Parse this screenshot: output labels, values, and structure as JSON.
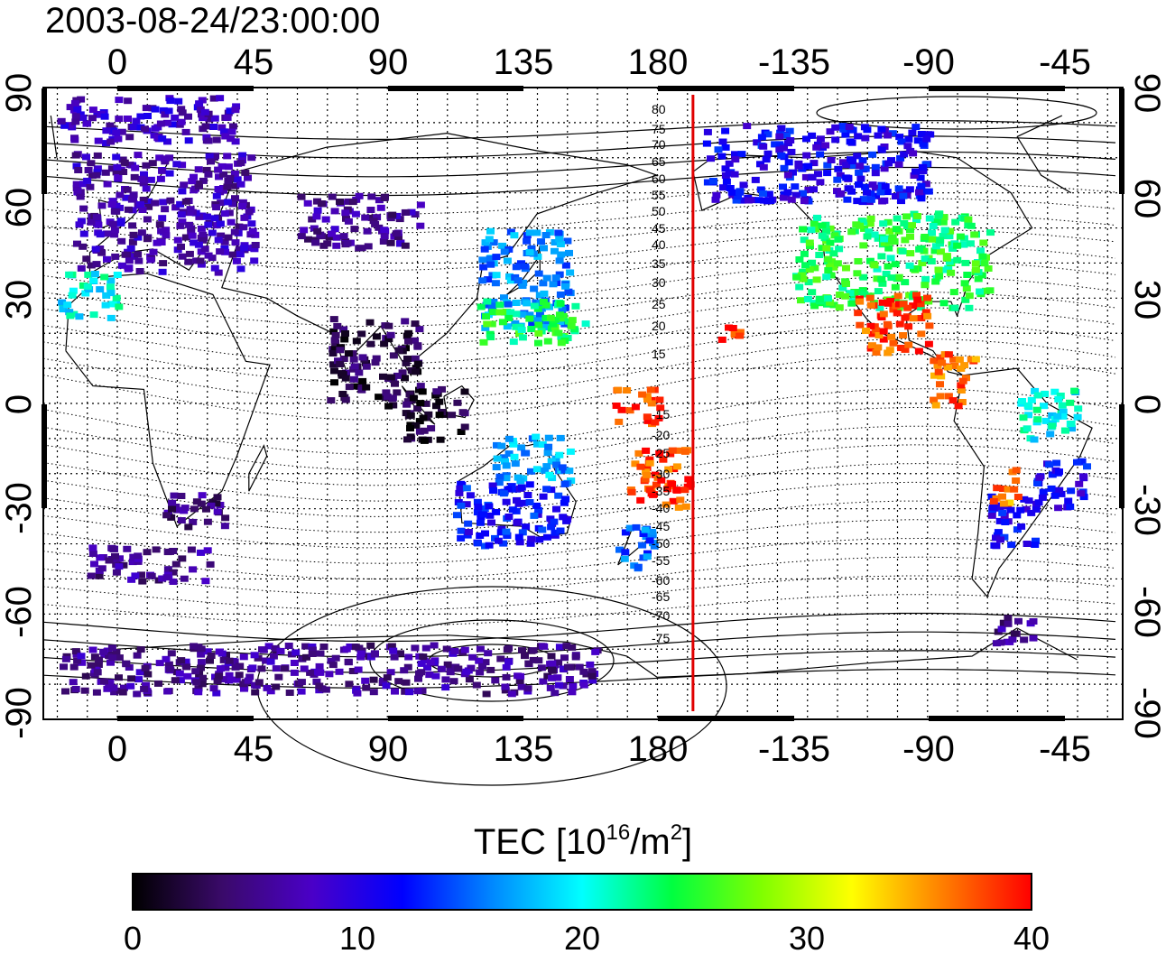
{
  "header": {
    "timestamp": "2003-08-24/23:00:00"
  },
  "axes": {
    "top_lon_ticks": [
      "0",
      "45",
      "90",
      "135",
      "180",
      "-135",
      "-90",
      "-45"
    ],
    "bottom_lon_ticks": [
      "0",
      "45",
      "90",
      "135",
      "180",
      "-135",
      "-90",
      "-45"
    ],
    "left_lat_ticks": [
      "90",
      "60",
      "30",
      "0",
      "-30",
      "-60",
      "-90"
    ],
    "right_lat_ticks": [
      "90",
      "60",
      "30",
      "0",
      "-30",
      "-60",
      "-90"
    ]
  },
  "contour_labels": [
    "80",
    "75",
    "70",
    "65",
    "60",
    "55",
    "50",
    "45",
    "40",
    "35",
    "30",
    "25",
    "20",
    "15",
    "-15",
    "-20",
    "-25",
    "-30",
    "-35",
    "-40",
    "-45",
    "-50",
    "-55",
    "-60",
    "-65",
    "-70",
    "-75"
  ],
  "colorbar": {
    "title_main": "TEC  [10",
    "title_sup1": "16",
    "title_mid": "/m",
    "title_sup2": "2",
    "title_end": "]",
    "ticks": [
      "0",
      "10",
      "20",
      "30",
      "40"
    ],
    "min": 0,
    "max": 40,
    "colors": [
      "#000000",
      "#3a0a6a",
      "#4a00c8",
      "#0000ff",
      "#0088ff",
      "#00ffff",
      "#00ff40",
      "#80ff00",
      "#ffff00",
      "#ff8000",
      "#ff0000"
    ]
  },
  "marker": {
    "longitude": -168,
    "color": "#e00000"
  },
  "data_regions": [
    {
      "name": "europe",
      "lon": [
        -15,
        45
      ],
      "lat": [
        38,
        72
      ],
      "tec": 7
    },
    {
      "name": "iceland-north",
      "lon": [
        -20,
        40
      ],
      "lat": [
        75,
        88
      ],
      "tec": 8
    },
    {
      "name": "west-africa",
      "lon": [
        -20,
        0
      ],
      "lat": [
        25,
        38
      ],
      "tec": 20
    },
    {
      "name": "siberia",
      "lon": [
        60,
        100
      ],
      "lat": [
        45,
        60
      ],
      "tec": 6
    },
    {
      "name": "japan",
      "lon": [
        120,
        150
      ],
      "lat": [
        22,
        50
      ],
      "tec": 16
    },
    {
      "name": "japan-south",
      "lon": [
        120,
        155
      ],
      "lat": [
        18,
        30
      ],
      "tec": 24
    },
    {
      "name": "alaska-canada",
      "lon": [
        -165,
        -90
      ],
      "lat": [
        58,
        80
      ],
      "tec": 11
    },
    {
      "name": "north-america",
      "lon": [
        -135,
        -70
      ],
      "lat": [
        28,
        55
      ],
      "tec": 24
    },
    {
      "name": "mexico",
      "lon": [
        -115,
        -90
      ],
      "lat": [
        15,
        32
      ],
      "tec": 38
    },
    {
      "name": "hawaii",
      "lon": [
        -160,
        -152
      ],
      "lat": [
        18,
        25
      ],
      "tec": 39
    },
    {
      "name": "central-america",
      "lon": [
        -90,
        -75
      ],
      "lat": [
        0,
        15
      ],
      "tec": 37
    },
    {
      "name": "pacific-equatorial",
      "lon": [
        165,
        180
      ],
      "lat": [
        -5,
        5
      ],
      "tec": 38
    },
    {
      "name": "fiji",
      "lon": [
        170,
        -170
      ],
      "lat": [
        -30,
        -12
      ],
      "tec": 38
    },
    {
      "name": "australia-north",
      "lon": [
        125,
        150
      ],
      "lat": [
        -22,
        -8
      ],
      "tec": 17
    },
    {
      "name": "australia-south",
      "lon": [
        112,
        150
      ],
      "lat": [
        -40,
        -22
      ],
      "tec": 12
    },
    {
      "name": "new-zealand",
      "lon": [
        165,
        178
      ],
      "lat": [
        -47,
        -34
      ],
      "tec": 15
    },
    {
      "name": "south-america-east",
      "lon": [
        -55,
        -38
      ],
      "lat": [
        -30,
        -15
      ],
      "tec": 11
    },
    {
      "name": "south-america-south",
      "lon": [
        -70,
        -55
      ],
      "lat": [
        -40,
        -25
      ],
      "tec": 11
    },
    {
      "name": "south-america-hot",
      "lon": [
        -70,
        -60
      ],
      "lat": [
        -28,
        -18
      ],
      "tec": 36
    },
    {
      "name": "south-america-north",
      "lon": [
        -60,
        -40
      ],
      "lat": [
        -10,
        5
      ],
      "tec": 20
    },
    {
      "name": "south-africa",
      "lon": [
        15,
        35
      ],
      "lat": [
        -35,
        -25
      ],
      "tec": 5
    },
    {
      "name": "india-sea",
      "lon": [
        70,
        100
      ],
      "lat": [
        0,
        25
      ],
      "tec": 3
    },
    {
      "name": "indonesia",
      "lon": [
        95,
        115
      ],
      "lat": [
        -10,
        5
      ],
      "tec": 2
    },
    {
      "name": "antarctica",
      "lon": [
        -20,
        160
      ],
      "lat": [
        -82,
        -68
      ],
      "tec": 6
    },
    {
      "name": "antarctic-peninsula",
      "lon": [
        -70,
        -55
      ],
      "lat": [
        -68,
        -60
      ],
      "tec": 6
    },
    {
      "name": "south-atlantic-dots",
      "lon": [
        -10,
        30
      ],
      "lat": [
        -50,
        -40
      ],
      "tec": 6
    }
  ]
}
